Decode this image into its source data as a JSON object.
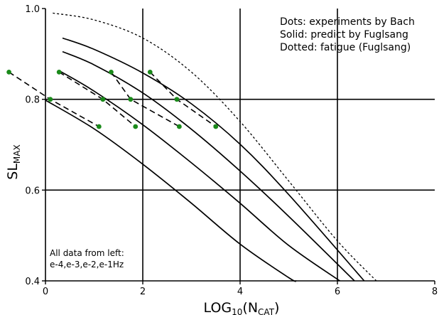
{
  "chart_data": {
    "type": "scatter",
    "xlabel_main": "LOG",
    "xlabel_sub1": "10",
    "xlabel_paren_open": "(N",
    "xlabel_sub2": "CAT",
    "xlabel_paren_close": ")",
    "ylabel_main": "SL",
    "ylabel_sub": "MAX",
    "xlim": [
      0,
      8
    ],
    "ylim": [
      0.4,
      1.0
    ],
    "x_ticks": [
      "0",
      "2",
      "4",
      "6",
      "8"
    ],
    "y_ticks": [
      "0.4",
      "0.6",
      "0.8",
      "1.0"
    ],
    "x_tick_values": [
      0,
      2,
      4,
      6,
      8
    ],
    "y_tick_values": [
      0.4,
      0.6,
      0.8,
      1.0
    ],
    "grid": true,
    "legend": {
      "placement": "top-right",
      "lines": [
        "Dots: experiments by Bach",
        "Solid: predict by Fuglsang",
        "Dotted: fatigue (Fuglsang)"
      ]
    },
    "annotation": {
      "placement": "bottom-left",
      "lines": [
        "All data from left:",
        "e-4,e-3,e-2,e-1Hz"
      ]
    },
    "colors": {
      "dots": "#1a8a1a",
      "lines": "#000000",
      "grid": "#000000"
    },
    "experiment_series": [
      {
        "x": [
          -0.75,
          0.1,
          1.1
        ],
        "y": [
          0.86,
          0.8,
          0.74
        ]
      },
      {
        "x": [
          0.28,
          1.18,
          1.85
        ],
        "y": [
          0.86,
          0.8,
          0.74
        ]
      },
      {
        "x": [
          1.35,
          1.75,
          2.75
        ],
        "y": [
          0.86,
          0.8,
          0.74
        ]
      },
      {
        "x": [
          2.15,
          2.7,
          3.5
        ],
        "y": [
          0.86,
          0.8,
          0.74
        ]
      }
    ],
    "solid_series": [
      {
        "x": [
          0,
          1,
          2,
          3,
          4,
          5,
          5.15
        ],
        "y": [
          0.798,
          0.735,
          0.657,
          0.571,
          0.481,
          0.407,
          0.4
        ]
      },
      {
        "x": [
          0.3,
          1,
          2,
          3,
          4,
          5,
          6.05
        ],
        "y": [
          0.862,
          0.818,
          0.744,
          0.66,
          0.571,
          0.478,
          0.4
        ]
      },
      {
        "x": [
          0.35,
          1,
          2,
          3,
          4,
          5,
          6.35
        ],
        "y": [
          0.905,
          0.876,
          0.814,
          0.734,
          0.642,
          0.542,
          0.4
        ]
      },
      {
        "x": [
          0.35,
          1,
          2,
          3,
          4,
          5,
          6.55
        ],
        "y": [
          0.935,
          0.91,
          0.858,
          0.79,
          0.701,
          0.59,
          0.4
        ]
      }
    ],
    "fatigue_series": {
      "x": [
        0.15,
        1,
        2,
        3,
        4,
        5,
        6,
        6.8
      ],
      "y": [
        0.99,
        0.975,
        0.935,
        0.86,
        0.751,
        0.62,
        0.488,
        0.4
      ]
    }
  }
}
